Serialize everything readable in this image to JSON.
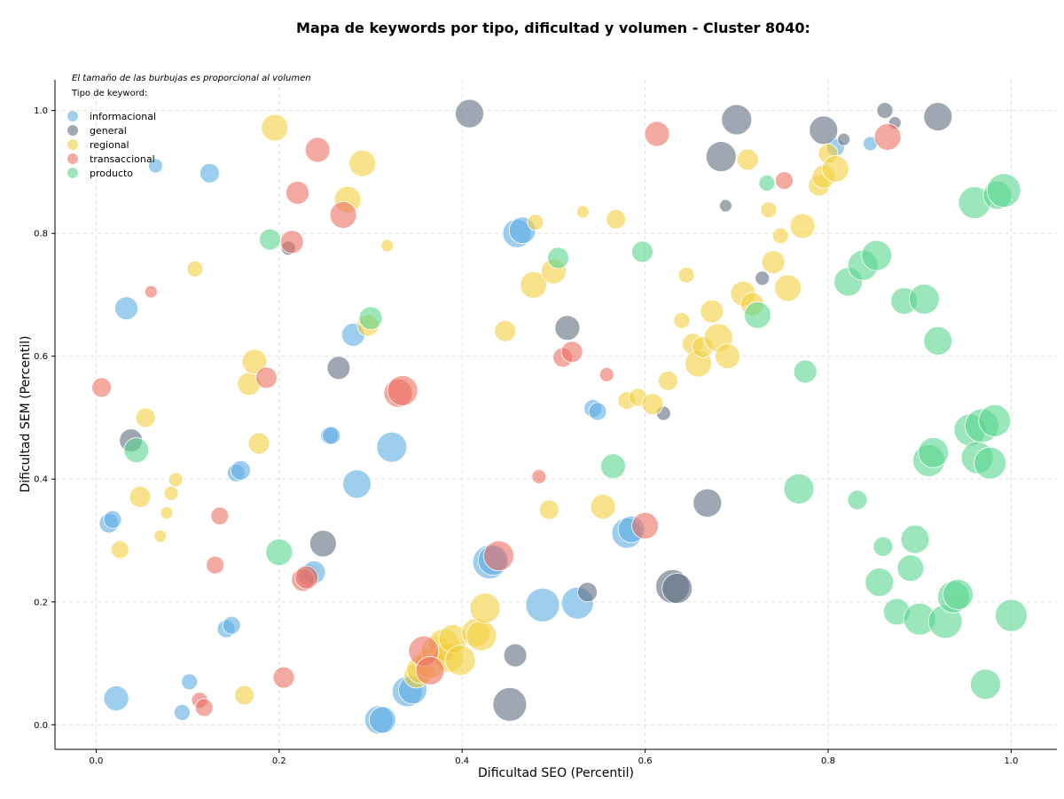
{
  "chart_data": {
    "type": "scatter",
    "title": "Mapa de keywords por tipo, dificultad y volumen - Cluster 8040:",
    "xlabel": "Dificultad SEO (Percentil)",
    "ylabel": "Dificultad SEM (Percentil)",
    "xlim": [
      -0.045,
      1.05
    ],
    "ylim": [
      -0.04,
      1.05
    ],
    "xticks": [
      "0.0",
      "0.2",
      "0.4",
      "0.6",
      "0.8",
      "1.0"
    ],
    "yticks": [
      "0.0",
      "0.2",
      "0.4",
      "0.6",
      "0.8",
      "1.0"
    ],
    "grid": true,
    "note": "El tamaño de las burbujas es proporcional al volumen",
    "legend": {
      "title": "Tipo de keyword:",
      "placement": "top-left"
    },
    "series": [
      {
        "name": "informacional",
        "color": "#5dade2",
        "points": [
          [
            0.065,
            0.91,
            8
          ],
          [
            0.124,
            0.898,
            11
          ],
          [
            0.033,
            0.678,
            13
          ],
          [
            0.014,
            0.328,
            11
          ],
          [
            0.018,
            0.334,
            10
          ],
          [
            0.022,
            0.043,
            14
          ],
          [
            0.102,
            0.07,
            9
          ],
          [
            0.094,
            0.02,
            9
          ],
          [
            0.142,
            0.156,
            10
          ],
          [
            0.148,
            0.162,
            10
          ],
          [
            0.153,
            0.41,
            10
          ],
          [
            0.158,
            0.414,
            11
          ],
          [
            0.232,
            0.244,
            12
          ],
          [
            0.238,
            0.248,
            13
          ],
          [
            0.255,
            0.471,
            10
          ],
          [
            0.257,
            0.471,
            10
          ],
          [
            0.281,
            0.635,
            13
          ],
          [
            0.285,
            0.392,
            16
          ],
          [
            0.309,
            0.008,
            16
          ],
          [
            0.313,
            0.008,
            15
          ],
          [
            0.323,
            0.452,
            17
          ],
          [
            0.34,
            0.054,
            17
          ],
          [
            0.346,
            0.057,
            16
          ],
          [
            0.43,
            0.265,
            19
          ],
          [
            0.434,
            0.268,
            17
          ],
          [
            0.46,
            0.8,
            16
          ],
          [
            0.466,
            0.805,
            15
          ],
          [
            0.488,
            0.195,
            19
          ],
          [
            0.526,
            0.198,
            18
          ],
          [
            0.543,
            0.515,
            10
          ],
          [
            0.548,
            0.51,
            10
          ],
          [
            0.58,
            0.312,
            17
          ],
          [
            0.585,
            0.318,
            15
          ],
          [
            0.808,
            0.94,
            10
          ],
          [
            0.846,
            0.946,
            8
          ]
        ]
      },
      {
        "name": "general",
        "color": "#5d6d7e",
        "points": [
          [
            0.038,
            0.463,
            13
          ],
          [
            0.21,
            0.776,
            8
          ],
          [
            0.248,
            0.295,
            15
          ],
          [
            0.265,
            0.581,
            13
          ],
          [
            0.408,
            0.995,
            16
          ],
          [
            0.452,
            0.033,
            19
          ],
          [
            0.458,
            0.113,
            13
          ],
          [
            0.515,
            0.646,
            14
          ],
          [
            0.537,
            0.216,
            11
          ],
          [
            0.62,
            0.507,
            8
          ],
          [
            0.63,
            0.225,
            19
          ],
          [
            0.635,
            0.222,
            17
          ],
          [
            0.668,
            0.361,
            16
          ],
          [
            0.683,
            0.925,
            17
          ],
          [
            0.688,
            0.845,
            7
          ],
          [
            0.7,
            0.985,
            17
          ],
          [
            0.728,
            0.727,
            8
          ],
          [
            0.795,
            0.968,
            16
          ],
          [
            0.817,
            0.953,
            7
          ],
          [
            0.862,
            1.0,
            9
          ],
          [
            0.873,
            0.98,
            7
          ],
          [
            0.92,
            0.99,
            16
          ]
        ]
      },
      {
        "name": "regional",
        "color": "#f4d03f",
        "points": [
          [
            0.026,
            0.285,
            10
          ],
          [
            0.048,
            0.371,
            12
          ],
          [
            0.054,
            0.5,
            11
          ],
          [
            0.07,
            0.307,
            7
          ],
          [
            0.077,
            0.345,
            7
          ],
          [
            0.082,
            0.377,
            8
          ],
          [
            0.087,
            0.399,
            8
          ],
          [
            0.108,
            0.742,
            9
          ],
          [
            0.162,
            0.048,
            11
          ],
          [
            0.167,
            0.555,
            13
          ],
          [
            0.173,
            0.591,
            14
          ],
          [
            0.178,
            0.458,
            12
          ],
          [
            0.195,
            0.972,
            15
          ],
          [
            0.275,
            0.855,
            15
          ],
          [
            0.291,
            0.914,
            15
          ],
          [
            0.297,
            0.65,
            12
          ],
          [
            0.318,
            0.78,
            7
          ],
          [
            0.35,
            0.08,
            14
          ],
          [
            0.355,
            0.09,
            16
          ],
          [
            0.365,
            0.1,
            17
          ],
          [
            0.372,
            0.12,
            17
          ],
          [
            0.38,
            0.13,
            18
          ],
          [
            0.385,
            0.11,
            17
          ],
          [
            0.39,
            0.14,
            16
          ],
          [
            0.398,
            0.105,
            17
          ],
          [
            0.415,
            0.15,
            16
          ],
          [
            0.421,
            0.145,
            17
          ],
          [
            0.425,
            0.19,
            17
          ],
          [
            0.447,
            0.641,
            12
          ],
          [
            0.478,
            0.716,
            15
          ],
          [
            0.48,
            0.818,
            9
          ],
          [
            0.495,
            0.35,
            11
          ],
          [
            0.5,
            0.738,
            14
          ],
          [
            0.532,
            0.835,
            7
          ],
          [
            0.554,
            0.355,
            14
          ],
          [
            0.568,
            0.823,
            11
          ],
          [
            0.58,
            0.528,
            10
          ],
          [
            0.592,
            0.533,
            10
          ],
          [
            0.608,
            0.522,
            12
          ],
          [
            0.625,
            0.56,
            11
          ],
          [
            0.64,
            0.658,
            9
          ],
          [
            0.645,
            0.732,
            9
          ],
          [
            0.652,
            0.62,
            12
          ],
          [
            0.658,
            0.588,
            15
          ],
          [
            0.663,
            0.615,
            12
          ],
          [
            0.673,
            0.673,
            13
          ],
          [
            0.68,
            0.63,
            16
          ],
          [
            0.69,
            0.6,
            14
          ],
          [
            0.707,
            0.702,
            14
          ],
          [
            0.712,
            0.92,
            12
          ],
          [
            0.717,
            0.685,
            13
          ],
          [
            0.735,
            0.838,
            9
          ],
          [
            0.74,
            0.753,
            13
          ],
          [
            0.748,
            0.796,
            9
          ],
          [
            0.756,
            0.711,
            15
          ],
          [
            0.772,
            0.812,
            14
          ],
          [
            0.79,
            0.878,
            12
          ],
          [
            0.795,
            0.892,
            13
          ],
          [
            0.8,
            0.93,
            11
          ],
          [
            0.808,
            0.905,
            15
          ]
        ]
      },
      {
        "name": "transaccional",
        "color": "#ec7063",
        "points": [
          [
            0.006,
            0.549,
            11
          ],
          [
            0.06,
            0.705,
            7
          ],
          [
            0.113,
            0.04,
            9
          ],
          [
            0.118,
            0.028,
            10
          ],
          [
            0.13,
            0.26,
            10
          ],
          [
            0.135,
            0.34,
            10
          ],
          [
            0.186,
            0.565,
            12
          ],
          [
            0.205,
            0.077,
            12
          ],
          [
            0.214,
            0.786,
            13
          ],
          [
            0.22,
            0.866,
            13
          ],
          [
            0.226,
            0.236,
            13
          ],
          [
            0.23,
            0.24,
            13
          ],
          [
            0.242,
            0.936,
            14
          ],
          [
            0.27,
            0.83,
            15
          ],
          [
            0.33,
            0.54,
            16
          ],
          [
            0.335,
            0.544,
            17
          ],
          [
            0.358,
            0.12,
            17
          ],
          [
            0.365,
            0.088,
            16
          ],
          [
            0.44,
            0.275,
            17
          ],
          [
            0.484,
            0.404,
            8
          ],
          [
            0.51,
            0.598,
            11
          ],
          [
            0.52,
            0.607,
            12
          ],
          [
            0.558,
            0.57,
            8
          ],
          [
            0.6,
            0.324,
            15
          ],
          [
            0.613,
            0.962,
            14
          ],
          [
            0.752,
            0.886,
            10
          ],
          [
            0.865,
            0.957,
            15
          ]
        ]
      },
      {
        "name": "producto",
        "color": "#58d68d",
        "points": [
          [
            0.044,
            0.447,
            14
          ],
          [
            0.19,
            0.79,
            12
          ],
          [
            0.2,
            0.281,
            15
          ],
          [
            0.3,
            0.662,
            13
          ],
          [
            0.505,
            0.76,
            12
          ],
          [
            0.565,
            0.421,
            14
          ],
          [
            0.597,
            0.77,
            12
          ],
          [
            0.723,
            0.667,
            15
          ],
          [
            0.733,
            0.882,
            9
          ],
          [
            0.768,
            0.384,
            17
          ],
          [
            0.775,
            0.575,
            13
          ],
          [
            0.822,
            0.721,
            16
          ],
          [
            0.832,
            0.366,
            11
          ],
          [
            0.838,
            0.748,
            17
          ],
          [
            0.853,
            0.764,
            17
          ],
          [
            0.856,
            0.232,
            16
          ],
          [
            0.86,
            0.29,
            11
          ],
          [
            0.875,
            0.184,
            15
          ],
          [
            0.883,
            0.69,
            15
          ],
          [
            0.89,
            0.255,
            15
          ],
          [
            0.895,
            0.302,
            16
          ],
          [
            0.9,
            0.172,
            18
          ],
          [
            0.905,
            0.693,
            17
          ],
          [
            0.91,
            0.43,
            18
          ],
          [
            0.915,
            0.443,
            17
          ],
          [
            0.92,
            0.625,
            16
          ],
          [
            0.928,
            0.168,
            19
          ],
          [
            0.937,
            0.208,
            18
          ],
          [
            0.942,
            0.212,
            17
          ],
          [
            0.955,
            0.48,
            18
          ],
          [
            0.96,
            0.85,
            18
          ],
          [
            0.963,
            0.435,
            18
          ],
          [
            0.968,
            0.487,
            19
          ],
          [
            0.972,
            0.066,
            17
          ],
          [
            0.977,
            0.426,
            18
          ],
          [
            0.982,
            0.495,
            18
          ],
          [
            0.985,
            0.862,
            16
          ],
          [
            0.992,
            0.87,
            19
          ],
          [
            1.0,
            0.178,
            18
          ]
        ]
      }
    ]
  }
}
